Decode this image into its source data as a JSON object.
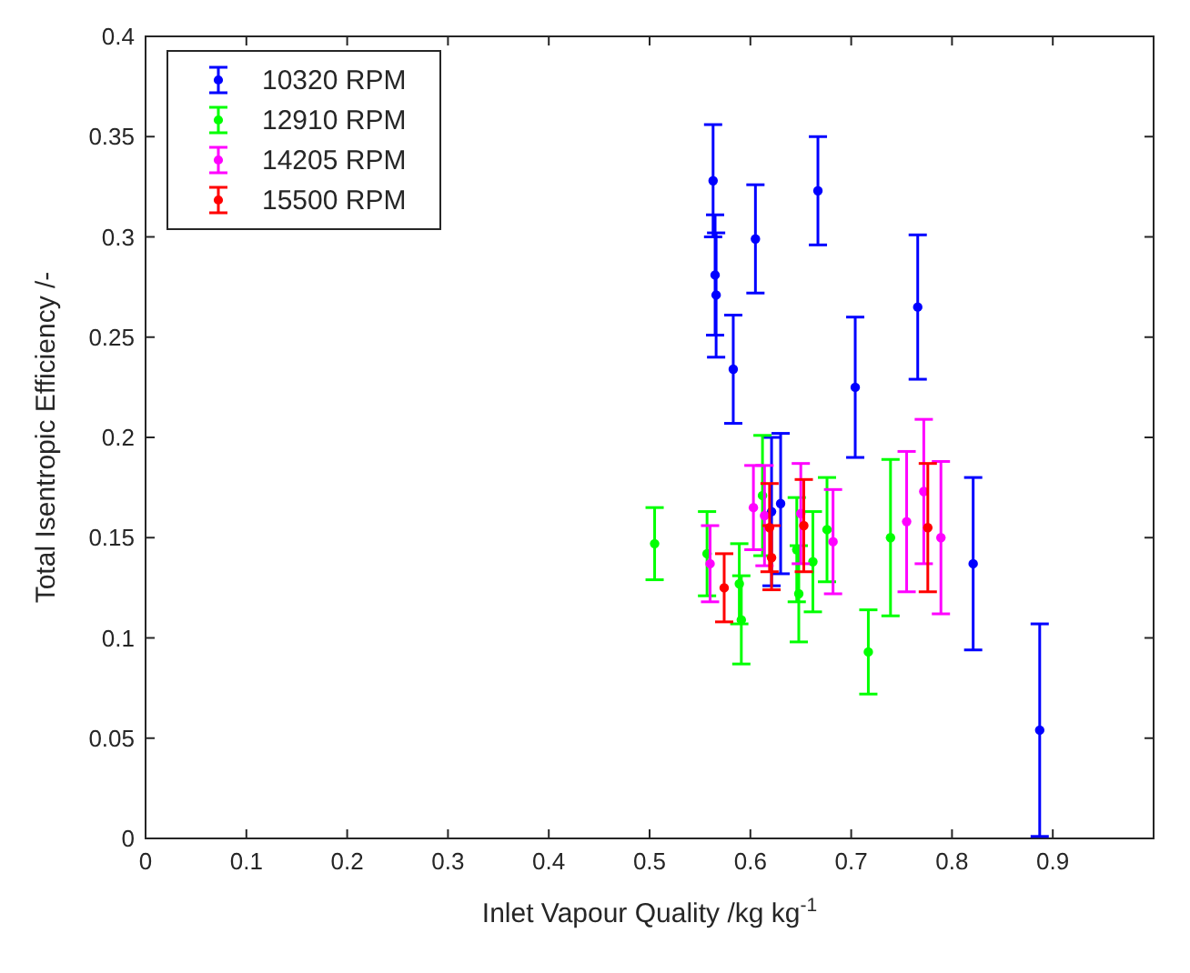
{
  "chart_data": {
    "type": "scatter",
    "xlabel": "Inlet Vapour Quality /kg kg$^{-1}$",
    "ylabel": "Total Isentropic Efficiency /-",
    "xlim": [
      0,
      1
    ],
    "xticks": [
      0,
      0.1,
      0.2,
      0.3,
      0.4,
      0.5,
      0.6,
      0.7,
      0.8,
      0.9
    ],
    "ylim": [
      0,
      0.4
    ],
    "yticks": [
      0,
      0.05,
      0.1,
      0.15,
      0.2,
      0.25,
      0.3,
      0.35,
      0.4
    ],
    "legend": "top left",
    "grid": false,
    "marker": "circle",
    "series": [
      {
        "name": "10320 RPM",
        "color": "#0000ff",
        "x": [
          0.563,
          0.565,
          0.566,
          0.605,
          0.667,
          0.583,
          0.704,
          0.766,
          0.821,
          0.887,
          0.621,
          0.63
        ],
        "values": [
          0.328,
          0.281,
          0.271,
          0.299,
          0.323,
          0.234,
          0.225,
          0.265,
          0.137,
          0.054,
          0.163,
          0.167
        ],
        "errors": [
          0.028,
          0.03,
          0.031,
          0.027,
          0.027,
          0.027,
          0.035,
          0.036,
          0.043,
          0.053,
          0.037,
          0.035
        ]
      },
      {
        "name": "12910 RPM",
        "color": "#00ff00",
        "x": [
          0.505,
          0.557,
          0.589,
          0.591,
          0.648,
          0.646,
          0.662,
          0.676,
          0.717,
          0.739,
          0.612
        ],
        "values": [
          0.147,
          0.142,
          0.127,
          0.109,
          0.122,
          0.144,
          0.138,
          0.154,
          0.093,
          0.15,
          0.171
        ],
        "errors": [
          0.018,
          0.021,
          0.02,
          0.022,
          0.024,
          0.026,
          0.025,
          0.026,
          0.021,
          0.039,
          0.03
        ]
      },
      {
        "name": "14205 RPM",
        "color": "#ff00ff",
        "x": [
          0.56,
          0.603,
          0.614,
          0.65,
          0.682,
          0.755,
          0.772,
          0.789
        ],
        "values": [
          0.137,
          0.165,
          0.161,
          0.162,
          0.148,
          0.158,
          0.173,
          0.15
        ],
        "errors": [
          0.019,
          0.021,
          0.025,
          0.025,
          0.026,
          0.035,
          0.036,
          0.038
        ]
      },
      {
        "name": "15500 RPM",
        "color": "#ff0000",
        "x": [
          0.574,
          0.619,
          0.621,
          0.653,
          0.776
        ],
        "values": [
          0.125,
          0.155,
          0.14,
          0.156,
          0.155
        ],
        "errors": [
          0.017,
          0.022,
          0.016,
          0.023,
          0.032
        ]
      }
    ]
  }
}
